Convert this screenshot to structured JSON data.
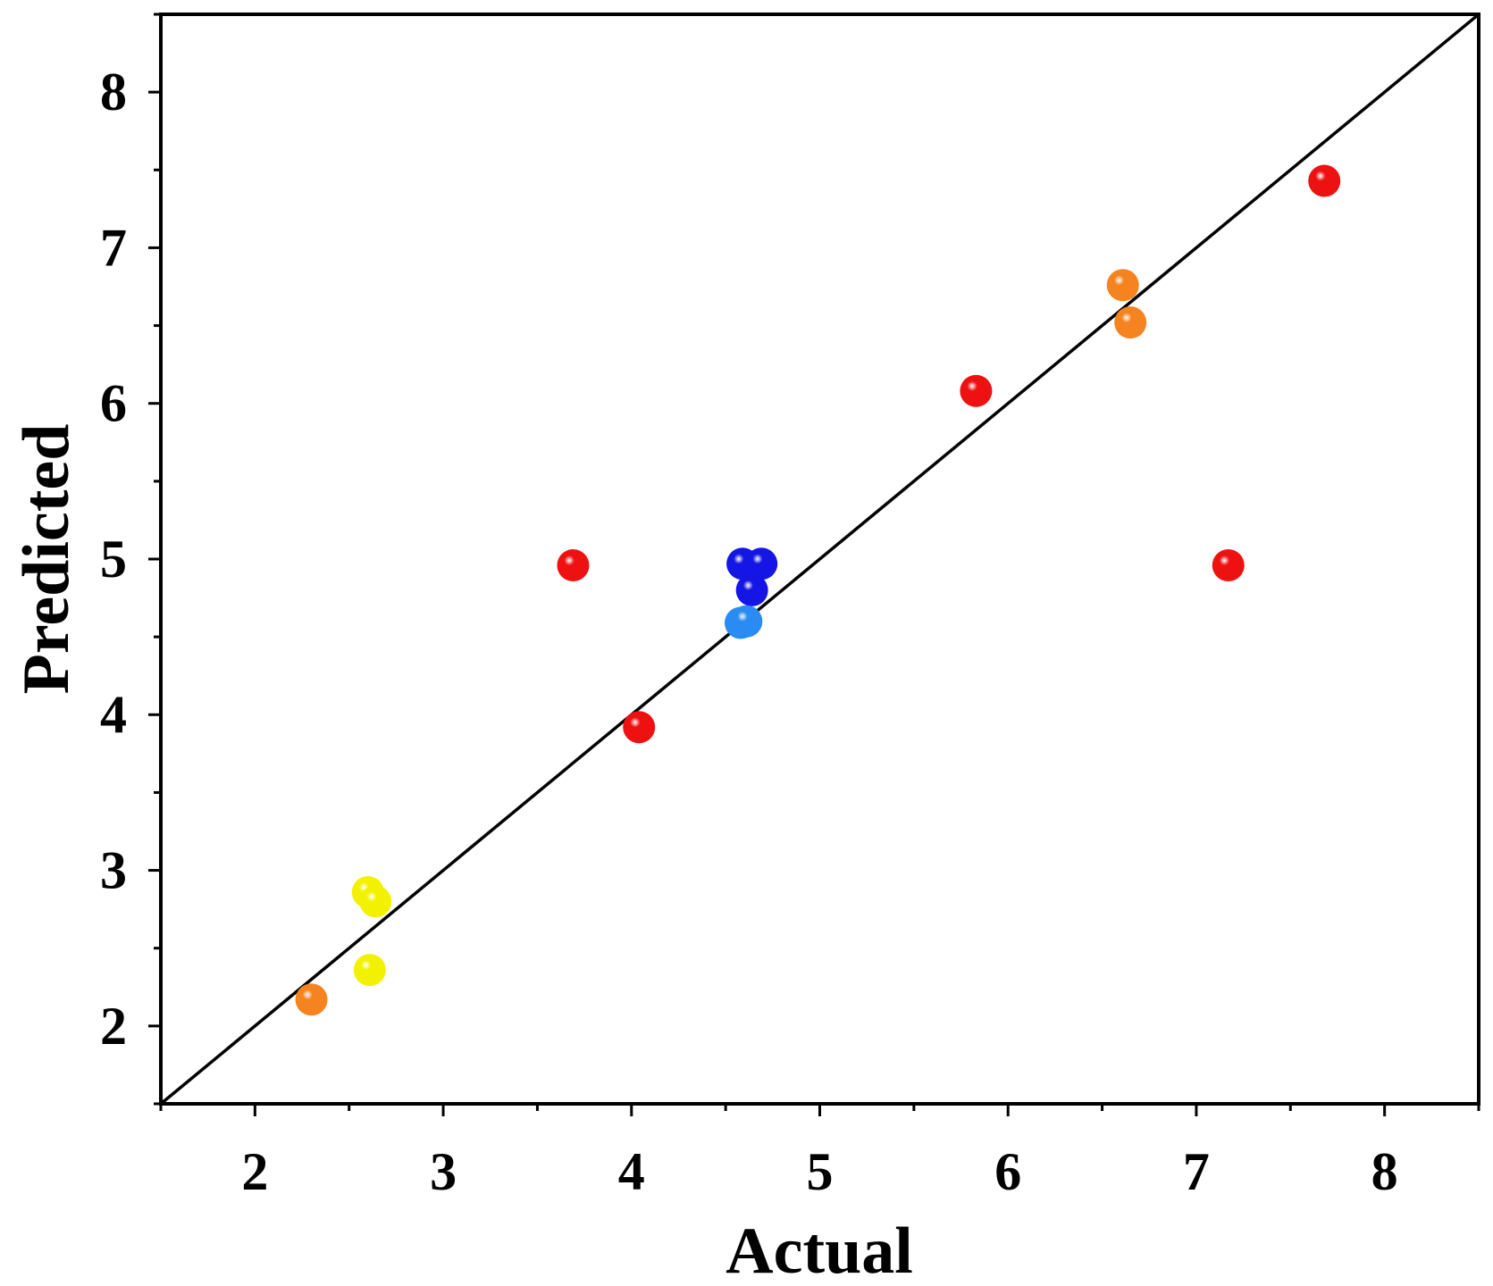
{
  "chart_data": {
    "type": "scatter",
    "xlabel": "Actual",
    "ylabel": "Predicted",
    "xlim": [
      1.5,
      8.5
    ],
    "ylim": [
      1.5,
      8.5
    ],
    "x_ticks": [
      2,
      3,
      4,
      5,
      6,
      7,
      8
    ],
    "y_ticks": [
      2,
      3,
      4,
      5,
      6,
      7,
      8
    ],
    "grid": false,
    "reference_line": {
      "type": "y=x",
      "color": "#000000"
    },
    "colors": {
      "red": "#ee1111",
      "orange": "#f5831f",
      "yellow": "#f2f200",
      "blue": "#1515e6",
      "light_blue": "#2a8cf2"
    },
    "points": [
      {
        "x": 3.69,
        "y": 4.96,
        "color": "red"
      },
      {
        "x": 4.04,
        "y": 3.92,
        "color": "red"
      },
      {
        "x": 5.83,
        "y": 6.08,
        "color": "red"
      },
      {
        "x": 7.17,
        "y": 4.96,
        "color": "red"
      },
      {
        "x": 7.68,
        "y": 7.43,
        "color": "red"
      },
      {
        "x": 2.3,
        "y": 2.17,
        "color": "orange"
      },
      {
        "x": 6.61,
        "y": 6.76,
        "color": "orange"
      },
      {
        "x": 6.65,
        "y": 6.52,
        "color": "orange"
      },
      {
        "x": 2.6,
        "y": 2.86,
        "color": "yellow"
      },
      {
        "x": 2.64,
        "y": 2.8,
        "color": "yellow"
      },
      {
        "x": 2.61,
        "y": 2.36,
        "color": "yellow"
      },
      {
        "x": 4.59,
        "y": 4.97,
        "color": "blue"
      },
      {
        "x": 4.69,
        "y": 4.97,
        "color": "blue"
      },
      {
        "x": 4.64,
        "y": 4.8,
        "color": "blue"
      },
      {
        "x": 4.58,
        "y": 4.59,
        "color": "light_blue"
      },
      {
        "x": 4.61,
        "y": 4.6,
        "color": "light_blue"
      }
    ]
  }
}
